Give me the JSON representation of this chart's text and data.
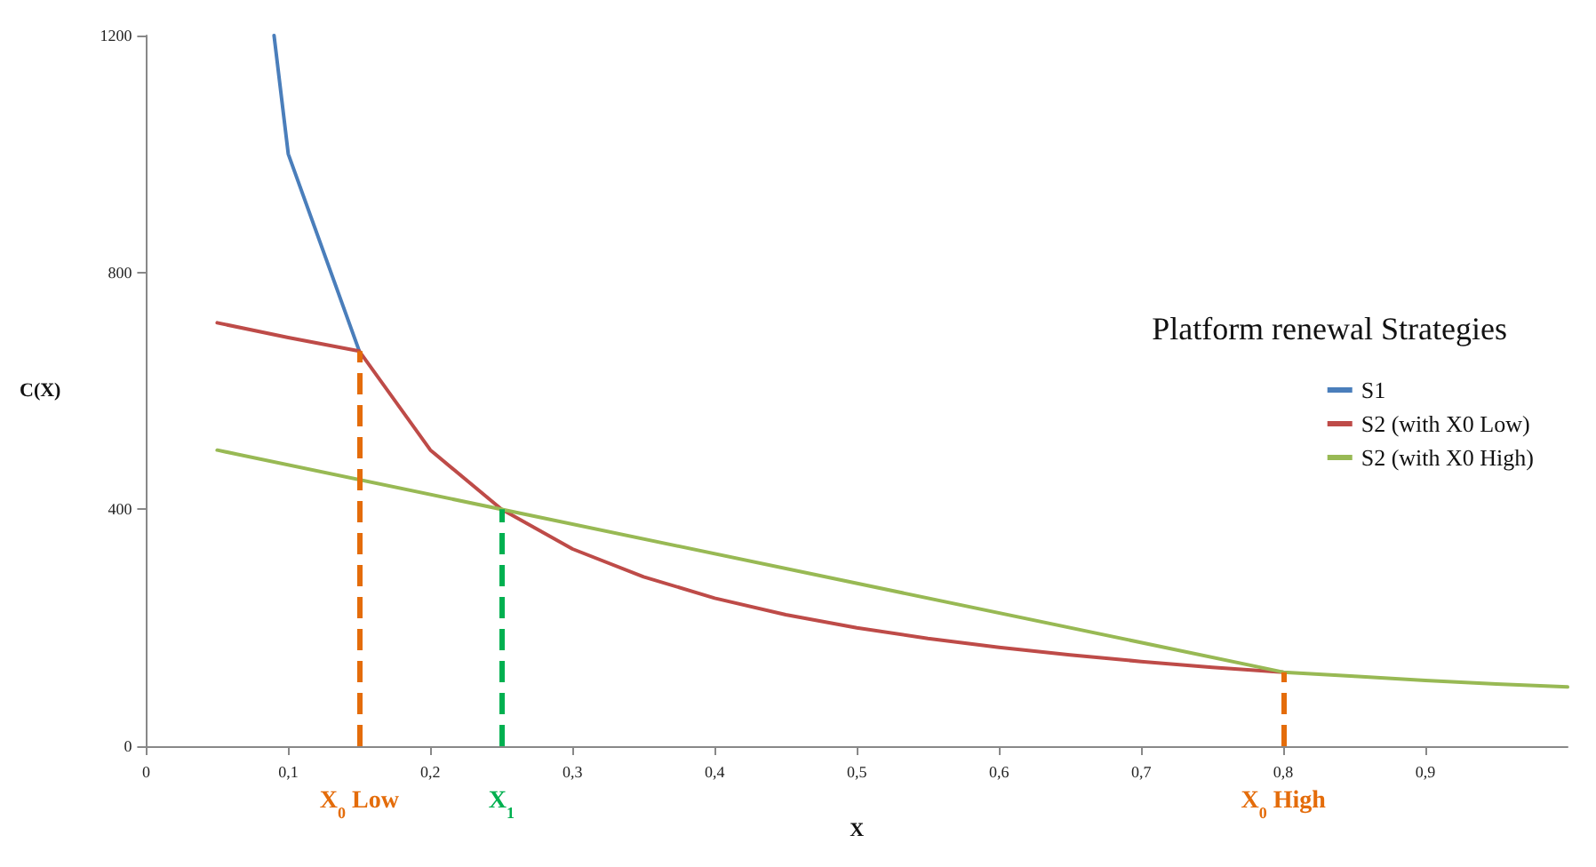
{
  "chart_data": {
    "type": "line",
    "xlabel": "X",
    "ylabel": "C(X)",
    "legend_title": "Platform renewal Strategies",
    "legend": "right",
    "grid": false,
    "marker": "none",
    "line_style": "solid",
    "xlim": [
      0,
      1
    ],
    "xticks": [
      0,
      {
        "value": 0.1,
        "label": "0,1"
      },
      {
        "value": 0.2,
        "label": "0,2"
      },
      {
        "value": 0.3,
        "label": "0,3"
      },
      {
        "value": 0.4,
        "label": "0,4"
      },
      {
        "value": 0.5,
        "label": "0,5"
      },
      {
        "value": 0.6,
        "label": "0,6"
      },
      {
        "value": 0.7,
        "label": "0,7"
      },
      {
        "value": 0.8,
        "label": "0,8"
      },
      {
        "value": 0.9,
        "label": "0,9"
      }
    ],
    "ylim": [
      0,
      1200
    ],
    "yticks": [
      0,
      400,
      800,
      1200
    ],
    "series": [
      {
        "name": "S1",
        "color": "#4a7ebb",
        "x": [
          0.09,
          0.1,
          0.15
        ],
        "values": [
          1200,
          1000,
          667
        ]
      },
      {
        "name": "S2 (with X0 Low)",
        "color": "#be4b48",
        "x": [
          0.05,
          0.1,
          0.15,
          0.2,
          0.25,
          0.3,
          0.35,
          0.4,
          0.45,
          0.5,
          0.55,
          0.6,
          0.65,
          0.7,
          0.75,
          0.8
        ],
        "values": [
          715,
          690,
          667,
          500,
          400,
          333,
          286,
          250,
          222,
          200,
          182,
          167,
          154,
          143,
          133,
          125
        ]
      },
      {
        "name": "S2 (with X0 High)",
        "color": "#98b954",
        "x": [
          0.05,
          0.8,
          0.85,
          0.9,
          0.95,
          1
        ],
        "values": [
          500,
          125,
          118,
          111,
          105,
          100
        ]
      }
    ],
    "ref_lines": [
      {
        "axis": "x",
        "value": 0.15,
        "label": "X$_{0}$ Low",
        "color": "#e46c0a",
        "line_style": "dashed"
      },
      {
        "axis": "x",
        "value": 0.25,
        "label": "X$_{1}$",
        "color": "#00b050",
        "line_style": "dashed"
      },
      {
        "axis": "x",
        "value": 0.8,
        "label": "X$_{0}$ High",
        "color": "#e46c0a",
        "line_style": "dashed"
      }
    ]
  }
}
